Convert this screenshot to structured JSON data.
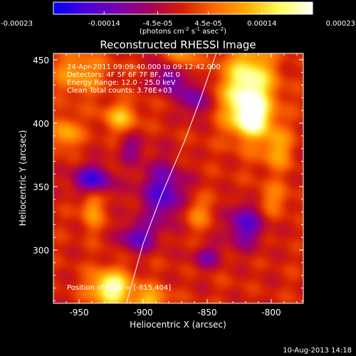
{
  "chart_data": {
    "type": "heatmap",
    "title": "Reconstructed RHESSI Image",
    "xlabel": "Heliocentric X (arcsec)",
    "ylabel": "Heliocentric Y (arcsec)",
    "xlim": [
      -970,
      -775
    ],
    "ylim": [
      258,
      455
    ],
    "x_ticks": [
      -950,
      -900,
      -850,
      -800
    ],
    "y_ticks": [
      300,
      350,
      400,
      450
    ],
    "x_tick_labels": [
      "-950",
      "-900",
      "-850",
      "-800"
    ],
    "y_tick_labels": [
      "300",
      "350",
      "400",
      "450"
    ],
    "colorbar": {
      "range": [
        -0.00023,
        0.00023
      ],
      "tick_values": [
        -0.00023,
        -0.00014,
        -4.5e-05,
        4.5e-05,
        0.00014,
        0.00023
      ],
      "tick_labels": [
        "-0.00023",
        "-0.00014",
        "-4.5e-05",
        "4.5e-05",
        "0.00014",
        "0.00023"
      ],
      "unit_label": "(photons cm",
      "unit_sup1": "-2",
      "unit_mid": " s",
      "unit_sup2": "-1",
      "unit_mid2": " asec",
      "unit_sup3": "-2",
      "unit_end": ")",
      "colormap": [
        "#0000ff",
        "#4b00d8",
        "#7a00b0",
        "#a8005a",
        "#d52000",
        "#ff6a00",
        "#ffb000",
        "#ffff60",
        "#ffffff"
      ]
    },
    "annotations": [
      "24-Apr-2011 09:09:40.000 to 09:12:42.000",
      "Detectors: 4F 5F 6F 7F 8F, Att 0",
      "Energy Range: 12.0 - 25.0 keV",
      "Clean    Total counts: 3.78E+03"
    ],
    "peak_label": "Position of Peak = [-815,404]",
    "limb_curve": [
      [
        -913,
        258
      ],
      [
        -900,
        305
      ],
      [
        -885,
        345
      ],
      [
        -868,
        385
      ],
      [
        -855,
        420
      ],
      [
        -843,
        455
      ]
    ],
    "blobs": [
      {
        "x": -818,
        "y": 425,
        "sx": 14,
        "sy": 24,
        "a": 1.0
      },
      {
        "x": -815,
        "y": 404,
        "sx": 9,
        "sy": 9,
        "a": 0.6
      },
      {
        "x": -795,
        "y": 380,
        "sx": 8,
        "sy": 12,
        "a": 0.45
      },
      {
        "x": -800,
        "y": 340,
        "sx": 9,
        "sy": 9,
        "a": 0.35
      },
      {
        "x": -925,
        "y": 270,
        "sx": 11,
        "sy": 10,
        "a": 0.95
      },
      {
        "x": -895,
        "y": 260,
        "sx": 10,
        "sy": 7,
        "a": 0.55
      },
      {
        "x": -960,
        "y": 392,
        "sx": 8,
        "sy": 9,
        "a": 0.5
      },
      {
        "x": -950,
        "y": 440,
        "sx": 14,
        "sy": 12,
        "a": 0.45
      },
      {
        "x": -870,
        "y": 455,
        "sx": 8,
        "sy": 10,
        "a": 0.4
      },
      {
        "x": -918,
        "y": 405,
        "sx": 9,
        "sy": 8,
        "a": 0.55
      },
      {
        "x": -940,
        "y": 335,
        "sx": 6,
        "sy": 14,
        "a": 0.45
      },
      {
        "x": -858,
        "y": 330,
        "sx": 8,
        "sy": 9,
        "a": 0.35
      },
      {
        "x": -940,
        "y": 355,
        "sx": 10,
        "sy": 8,
        "a": -0.9
      },
      {
        "x": -885,
        "y": 345,
        "sx": 12,
        "sy": 16,
        "a": -0.7
      },
      {
        "x": -880,
        "y": 435,
        "sx": 8,
        "sy": 8,
        "a": -0.6
      },
      {
        "x": -910,
        "y": 380,
        "sx": 7,
        "sy": 7,
        "a": -0.4
      },
      {
        "x": -905,
        "y": 310,
        "sx": 10,
        "sy": 8,
        "a": -0.6
      },
      {
        "x": -860,
        "y": 420,
        "sx": 8,
        "sy": 10,
        "a": -0.5
      },
      {
        "x": -820,
        "y": 320,
        "sx": 10,
        "sy": 12,
        "a": -0.65
      },
      {
        "x": -850,
        "y": 295,
        "sx": 8,
        "sy": 6,
        "a": -0.45
      }
    ]
  },
  "footer": {
    "date": "10-Aug-2013 14:18"
  }
}
